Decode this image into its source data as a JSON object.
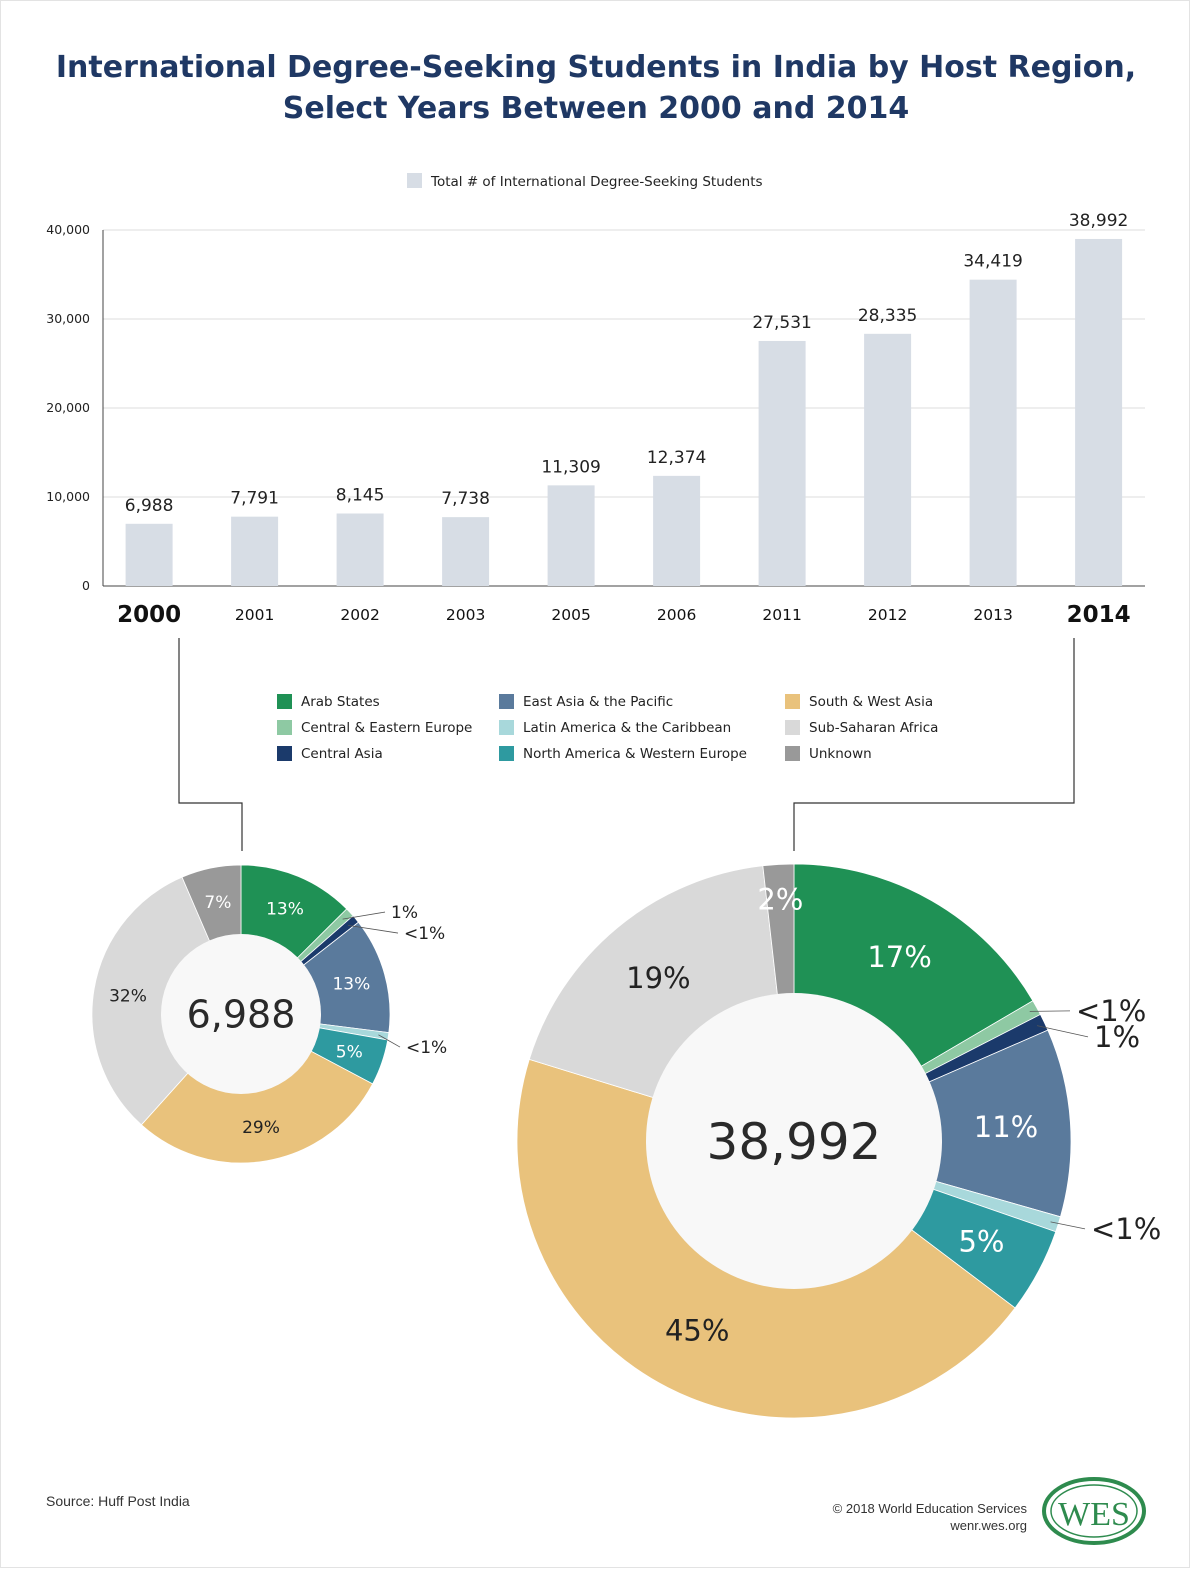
{
  "title": {
    "line1": "International Degree-Seeking Students in India by Host Region,",
    "line2": "Select Years Between 2000 and 2014"
  },
  "bar_legend": "Total # of International Degree-Seeking Students",
  "region_legend": [
    {
      "label": "Arab States",
      "color": "#1f9155"
    },
    {
      "label": "Central & Eastern Europe",
      "color": "#8ec9a3"
    },
    {
      "label": "Central Asia",
      "color": "#1b3a6b"
    },
    {
      "label": "East Asia & the Pacific",
      "color": "#5a7a9c"
    },
    {
      "label": "Latin America & the Caribbean",
      "color": "#a8d8db"
    },
    {
      "label": "North America & Western Europe",
      "color": "#2e9aa0"
    },
    {
      "label": "South & West Asia",
      "color": "#e9c27c"
    },
    {
      "label": "Sub-Saharan Africa",
      "color": "#d9d9d9"
    },
    {
      "label": "Unknown",
      "color": "#999999"
    }
  ],
  "chart_data": [
    {
      "type": "bar",
      "categories": [
        "2000",
        "2001",
        "2002",
        "2003",
        "2005",
        "2006",
        "2011",
        "2012",
        "2013",
        "2014"
      ],
      "values": [
        6988,
        7791,
        8145,
        7738,
        11309,
        12374,
        27531,
        28335,
        34419,
        38992
      ],
      "value_labels": [
        "6,988",
        "7,791",
        "8,145",
        "7,738",
        "11,309",
        "12,374",
        "27,531",
        "28,335",
        "34,419",
        "38,992"
      ],
      "ylim": [
        0,
        40000
      ],
      "yticks": [
        "0",
        "10,000",
        "20,000",
        "30,000",
        "40,000"
      ],
      "grid": true,
      "bar_color": "#d7dde5",
      "highlighted_categories": [
        "2000",
        "2014"
      ]
    },
    {
      "type": "pie",
      "year": "2000",
      "center_label": "6,988",
      "slices": [
        {
          "region": "Arab States",
          "value": 12.6,
          "label": "13%"
        },
        {
          "region": "Central & Eastern Europe",
          "value": 1.0,
          "label": "1%"
        },
        {
          "region": "Central Asia",
          "value": 0.9,
          "label": "<1%"
        },
        {
          "region": "East Asia & the Pacific",
          "value": 12.6,
          "label": "13%"
        },
        {
          "region": "Latin America & the Caribbean",
          "value": 0.8,
          "label": "<1%"
        },
        {
          "region": "North America & Western Europe",
          "value": 5.0,
          "label": "5%"
        },
        {
          "region": "South & West Asia",
          "value": 29.0,
          "label": "29%"
        },
        {
          "region": "Sub-Saharan Africa",
          "value": 32.0,
          "label": "32%"
        },
        {
          "region": "Unknown",
          "value": 6.5,
          "label": "7%"
        }
      ]
    },
    {
      "type": "pie",
      "year": "2014",
      "center_label": "38,992",
      "slices": [
        {
          "region": "Arab States",
          "value": 16.6,
          "label": "17%"
        },
        {
          "region": "Central & Eastern Europe",
          "value": 0.9,
          "label": "<1%"
        },
        {
          "region": "Central Asia",
          "value": 1.0,
          "label": "1%"
        },
        {
          "region": "East Asia & the Pacific",
          "value": 11.0,
          "label": "11%"
        },
        {
          "region": "Latin America & the Caribbean",
          "value": 0.9,
          "label": "<1%"
        },
        {
          "region": "North America & Western Europe",
          "value": 5.0,
          "label": "5%"
        },
        {
          "region": "South & West Asia",
          "value": 44.6,
          "label": "45%"
        },
        {
          "region": "Sub-Saharan Africa",
          "value": 18.5,
          "label": "19%"
        },
        {
          "region": "Unknown",
          "value": 1.8,
          "label": "2%"
        }
      ]
    }
  ],
  "footer": {
    "source": "Source: Huff Post India",
    "copyright": "© 2018 World Education Services",
    "site": "wenr.wes.org",
    "logo_text": "WES"
  }
}
